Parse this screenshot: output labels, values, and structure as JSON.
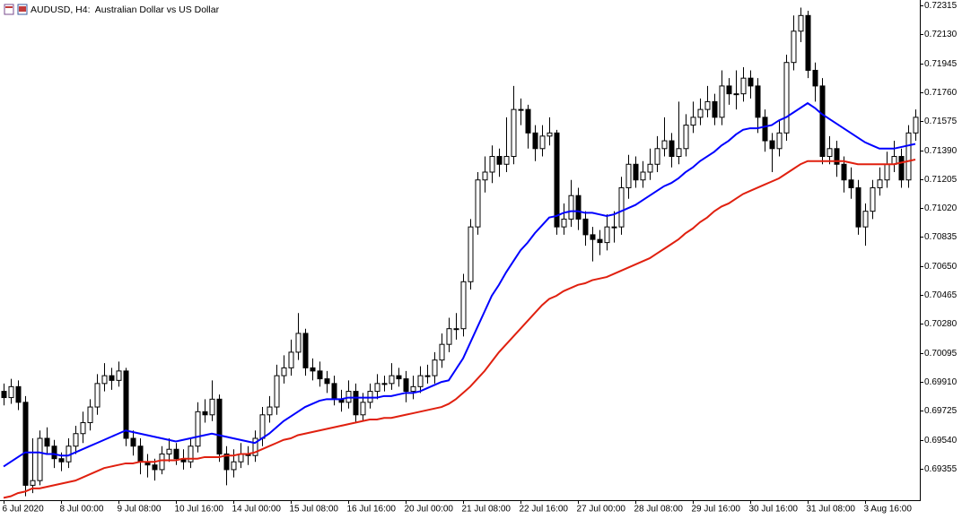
{
  "chart_data": {
    "type": "candlestick",
    "title": "AUDUSD, H4:  Australian Dollar vs US Dollar",
    "categories": [
      "6 Jul 2020",
      null,
      null,
      null,
      null,
      null,
      null,
      null,
      "8 Jul 00:00",
      null,
      null,
      null,
      null,
      null,
      null,
      null,
      "9 Jul 08:00",
      null,
      null,
      null,
      null,
      null,
      null,
      null,
      "10 Jul 16:00",
      null,
      null,
      null,
      null,
      null,
      null,
      null,
      "14 Jul 00:00",
      null,
      null,
      null,
      null,
      null,
      null,
      null,
      "15 Jul 08:00",
      null,
      null,
      null,
      null,
      null,
      null,
      null,
      "16 Jul 16:00",
      null,
      null,
      null,
      null,
      null,
      null,
      null,
      "20 Jul 00:00",
      null,
      null,
      null,
      null,
      null,
      null,
      null,
      "21 Jul 08:00",
      null,
      null,
      null,
      null,
      null,
      null,
      null,
      "22 Jul 16:00",
      null,
      null,
      null,
      null,
      null,
      null,
      null,
      "27 Jul 00:00",
      null,
      null,
      null,
      null,
      null,
      null,
      null,
      "28 Jul 08:00",
      null,
      null,
      null,
      null,
      null,
      null,
      null,
      "29 Jul 16:00",
      null,
      null,
      null,
      null,
      null,
      null,
      null,
      "30 Jul 16:00",
      null,
      null,
      null,
      null,
      null,
      null,
      null,
      "31 Jul 08:00",
      null,
      null,
      null,
      null,
      null,
      null,
      null,
      "3 Aug 16:00",
      null,
      null,
      null,
      null,
      null,
      null,
      null
    ],
    "open": [
      0.6985,
      0.6981,
      0.6988,
      0.6978,
      0.6925,
      0.6928,
      0.6955,
      0.695,
      0.6942,
      0.694,
      0.695,
      0.6958,
      0.6965,
      0.6975,
      0.699,
      0.6995,
      0.6992,
      0.6998,
      0.6955,
      0.695,
      0.694,
      0.6938,
      0.6935,
      0.6945,
      0.6948,
      0.6942,
      0.694,
      0.695,
      0.6972,
      0.697,
      0.698,
      0.6945,
      0.6935,
      0.694,
      0.6945,
      0.6944,
      0.6955,
      0.697,
      0.6975,
      0.6995,
      0.7,
      0.701,
      0.7022,
      0.7,
      0.6998,
      0.6993,
      0.699,
      0.698,
      0.6978,
      0.6985,
      0.697,
      0.6978,
      0.6985,
      0.699,
      0.699,
      0.6995,
      0.6993,
      0.6985,
      0.6988,
      0.6995,
      0.6995,
      0.7005,
      0.7015,
      0.7025,
      0.7025,
      0.7055,
      0.709,
      0.712,
      0.7125,
      0.7135,
      0.713,
      0.7135,
      0.7165,
      0.7165,
      0.715,
      0.714,
      0.7148,
      0.715,
      0.709,
      0.7095,
      0.711,
      0.7095,
      0.7085,
      0.7082,
      0.708,
      0.709,
      0.709,
      0.7115,
      0.713,
      0.712,
      0.7125,
      0.713,
      0.714,
      0.7145,
      0.7135,
      0.714,
      0.7155,
      0.716,
      0.7165,
      0.717,
      0.716,
      0.718,
      0.7175,
      0.7175,
      0.7185,
      0.718,
      0.716,
      0.7145,
      0.714,
      0.715,
      0.7195,
      0.7215,
      0.7225,
      0.719,
      0.718,
      0.7135,
      0.714,
      0.713,
      0.712,
      0.7115,
      0.709,
      0.71,
      0.7115,
      0.712,
      0.713,
      0.7135,
      0.712,
      0.715
    ],
    "high": [
      0.699,
      0.6993,
      0.6992,
      0.6982,
      0.6955,
      0.696,
      0.6962,
      0.6954,
      0.6946,
      0.6955,
      0.6963,
      0.6972,
      0.698,
      0.6996,
      0.7003,
      0.7,
      0.7004,
      0.7,
      0.696,
      0.6955,
      0.6945,
      0.6942,
      0.695,
      0.6955,
      0.6952,
      0.6948,
      0.6955,
      0.6978,
      0.698,
      0.6992,
      0.6983,
      0.695,
      0.6948,
      0.6952,
      0.695,
      0.696,
      0.6975,
      0.6982,
      0.7002,
      0.7008,
      0.7018,
      0.7035,
      0.7025,
      0.7006,
      0.7004,
      0.6998,
      0.6995,
      0.6986,
      0.6992,
      0.699,
      0.6984,
      0.699,
      0.6996,
      0.6995,
      0.7003,
      0.7,
      0.6998,
      0.6995,
      0.7001,
      0.7002,
      0.701,
      0.7022,
      0.7032,
      0.7035,
      0.706,
      0.7095,
      0.7125,
      0.7135,
      0.7142,
      0.714,
      0.716,
      0.718,
      0.7172,
      0.7168,
      0.7155,
      0.7155,
      0.716,
      0.7152,
      0.7105,
      0.712,
      0.7115,
      0.71,
      0.709,
      0.7088,
      0.7098,
      0.71,
      0.7122,
      0.7136,
      0.7135,
      0.7132,
      0.714,
      0.7148,
      0.716,
      0.715,
      0.717,
      0.7162,
      0.717,
      0.7172,
      0.718,
      0.7175,
      0.719,
      0.7185,
      0.719,
      0.7192,
      0.719,
      0.7185,
      0.7165,
      0.715,
      0.7158,
      0.72,
      0.7225,
      0.723,
      0.7228,
      0.7195,
      0.7185,
      0.7148,
      0.7145,
      0.7135,
      0.7128,
      0.712,
      0.7105,
      0.712,
      0.7128,
      0.7138,
      0.7145,
      0.714,
      0.7155,
      0.7165
    ],
    "low": [
      0.6976,
      0.6977,
      0.6973,
      0.6918,
      0.692,
      0.6925,
      0.6945,
      0.6936,
      0.6934,
      0.6936,
      0.6945,
      0.6952,
      0.696,
      0.697,
      0.6985,
      0.6986,
      0.6988,
      0.695,
      0.6944,
      0.6932,
      0.693,
      0.6928,
      0.6932,
      0.694,
      0.6938,
      0.6935,
      0.6936,
      0.6946,
      0.6965,
      0.6966,
      0.694,
      0.6925,
      0.693,
      0.6936,
      0.6938,
      0.694,
      0.695,
      0.6965,
      0.697,
      0.699,
      0.6995,
      0.7005,
      0.6995,
      0.6992,
      0.6988,
      0.6984,
      0.6976,
      0.6972,
      0.6974,
      0.6965,
      0.6966,
      0.6974,
      0.698,
      0.6985,
      0.6986,
      0.6988,
      0.6978,
      0.698,
      0.6984,
      0.699,
      0.699,
      0.7,
      0.701,
      0.7018,
      0.702,
      0.705,
      0.7085,
      0.7112,
      0.7118,
      0.7122,
      0.7125,
      0.713,
      0.7155,
      0.714,
      0.7132,
      0.7135,
      0.7142,
      0.7085,
      0.7085,
      0.709,
      0.7088,
      0.7078,
      0.7068,
      0.7072,
      0.7075,
      0.708,
      0.7085,
      0.7108,
      0.7115,
      0.7115,
      0.712,
      0.7125,
      0.7135,
      0.7128,
      0.713,
      0.7135,
      0.715,
      0.7155,
      0.716,
      0.7155,
      0.7155,
      0.7168,
      0.7165,
      0.717,
      0.7172,
      0.715,
      0.7138,
      0.7125,
      0.7135,
      0.7145,
      0.719,
      0.7208,
      0.7185,
      0.717,
      0.713,
      0.713,
      0.7122,
      0.7112,
      0.7108,
      0.7085,
      0.7078,
      0.7095,
      0.711,
      0.7115,
      0.7125,
      0.7115,
      0.7115,
      0.7145
    ],
    "close": [
      0.6981,
      0.6988,
      0.6978,
      0.6925,
      0.6928,
      0.6955,
      0.695,
      0.6942,
      0.694,
      0.695,
      0.6958,
      0.6965,
      0.6975,
      0.699,
      0.6995,
      0.6992,
      0.6998,
      0.6955,
      0.695,
      0.694,
      0.6938,
      0.6935,
      0.6945,
      0.6948,
      0.6942,
      0.694,
      0.695,
      0.6972,
      0.697,
      0.698,
      0.6945,
      0.6935,
      0.694,
      0.6945,
      0.6944,
      0.6955,
      0.697,
      0.6975,
      0.6995,
      0.7,
      0.701,
      0.7022,
      0.7,
      0.6998,
      0.6993,
      0.699,
      0.698,
      0.6978,
      0.6985,
      0.697,
      0.6978,
      0.6985,
      0.699,
      0.699,
      0.6995,
      0.6993,
      0.6985,
      0.6988,
      0.6995,
      0.6995,
      0.7005,
      0.7015,
      0.7025,
      0.7025,
      0.7055,
      0.709,
      0.712,
      0.7125,
      0.7135,
      0.713,
      0.7135,
      0.7165,
      0.7165,
      0.715,
      0.714,
      0.7148,
      0.715,
      0.709,
      0.7095,
      0.711,
      0.7095,
      0.7085,
      0.7082,
      0.708,
      0.709,
      0.709,
      0.7115,
      0.713,
      0.712,
      0.7125,
      0.713,
      0.714,
      0.7145,
      0.7135,
      0.714,
      0.7155,
      0.716,
      0.7165,
      0.717,
      0.716,
      0.718,
      0.7175,
      0.7175,
      0.7185,
      0.718,
      0.716,
      0.7145,
      0.714,
      0.715,
      0.7195,
      0.7215,
      0.7225,
      0.719,
      0.718,
      0.7135,
      0.714,
      0.713,
      0.712,
      0.7115,
      0.709,
      0.71,
      0.7115,
      0.712,
      0.713,
      0.7135,
      0.712,
      0.715,
      0.716
    ],
    "ma_lines": [
      {
        "color": "#0000ff",
        "values": [
          0.6937,
          0.694,
          0.6943,
          0.6946,
          0.6946,
          0.6946,
          0.6945,
          0.6945,
          0.6944,
          0.6944,
          0.6946,
          0.6948,
          0.695,
          0.6952,
          0.6954,
          0.6956,
          0.6958,
          0.696,
          0.6959,
          0.6958,
          0.6957,
          0.6956,
          0.6955,
          0.6954,
          0.6953,
          0.6954,
          0.6955,
          0.6956,
          0.6957,
          0.6958,
          0.6957,
          0.6956,
          0.6955,
          0.6954,
          0.6953,
          0.6952,
          0.6955,
          0.6958,
          0.6962,
          0.6966,
          0.6969,
          0.6972,
          0.6975,
          0.6977,
          0.6979,
          0.698,
          0.698,
          0.698,
          0.6981,
          0.6981,
          0.6981,
          0.6981,
          0.6981,
          0.6982,
          0.6982,
          0.6983,
          0.6984,
          0.6984,
          0.6985,
          0.6987,
          0.6989,
          0.6991,
          0.6992,
          0.6999,
          0.7006,
          0.7016,
          0.7026,
          0.7036,
          0.7046,
          0.7053,
          0.7061,
          0.7068,
          0.7075,
          0.708,
          0.7086,
          0.7091,
          0.7096,
          0.7097,
          0.7099,
          0.71,
          0.71,
          0.7099,
          0.7099,
          0.7098,
          0.7097,
          0.7098,
          0.71,
          0.7102,
          0.7104,
          0.7107,
          0.711,
          0.7113,
          0.7116,
          0.7118,
          0.7121,
          0.7125,
          0.7128,
          0.7132,
          0.7135,
          0.7138,
          0.7142,
          0.7145,
          0.7149,
          0.7152,
          0.7153,
          0.7153,
          0.7154,
          0.7155,
          0.7158,
          0.716,
          0.7163,
          0.7166,
          0.7169,
          0.7166,
          0.7162,
          0.7159,
          0.7156,
          0.7153,
          0.715,
          0.7147,
          0.7144,
          0.7142,
          0.714,
          0.714,
          0.714,
          0.7141,
          0.7142,
          0.7143
        ]
      },
      {
        "color": "#e0200f",
        "values": [
          0.6917,
          0.6918,
          0.692,
          0.6921,
          0.6923,
          0.6923,
          0.6924,
          0.6925,
          0.6926,
          0.6927,
          0.6928,
          0.693,
          0.6932,
          0.6934,
          0.6936,
          0.6937,
          0.6938,
          0.6939,
          0.6939,
          0.694,
          0.694,
          0.694,
          0.6941,
          0.6941,
          0.6941,
          0.6942,
          0.6942,
          0.6942,
          0.6943,
          0.6943,
          0.6943,
          0.6944,
          0.6944,
          0.6945,
          0.6945,
          0.6946,
          0.6948,
          0.695,
          0.6952,
          0.6954,
          0.6955,
          0.6957,
          0.6958,
          0.6959,
          0.696,
          0.6961,
          0.6962,
          0.6963,
          0.6964,
          0.6965,
          0.6966,
          0.6967,
          0.6967,
          0.6968,
          0.6968,
          0.6969,
          0.697,
          0.6971,
          0.6972,
          0.6973,
          0.6974,
          0.6975,
          0.6977,
          0.698,
          0.6984,
          0.6988,
          0.6993,
          0.6998,
          0.7004,
          0.701,
          0.7015,
          0.702,
          0.7025,
          0.703,
          0.7035,
          0.704,
          0.7044,
          0.7046,
          0.7049,
          0.7051,
          0.7053,
          0.7054,
          0.7056,
          0.7057,
          0.7058,
          0.706,
          0.7062,
          0.7064,
          0.7066,
          0.7068,
          0.707,
          0.7073,
          0.7076,
          0.7079,
          0.7082,
          0.7086,
          0.7089,
          0.7093,
          0.7096,
          0.71,
          0.7103,
          0.7105,
          0.7108,
          0.7111,
          0.7113,
          0.7115,
          0.7117,
          0.7119,
          0.7121,
          0.7124,
          0.7127,
          0.713,
          0.7132,
          0.7132,
          0.7132,
          0.7132,
          0.7132,
          0.7132,
          0.7131,
          0.713,
          0.713,
          0.713,
          0.713,
          0.713,
          0.713,
          0.7131,
          0.7132,
          0.7133
        ]
      }
    ],
    "up_color": "#ffffff",
    "down_color": "#000000",
    "outline_color": "#000000",
    "ylim": [
      0.69155,
      0.72349
    ],
    "yticks": [
      0.72315,
      {
        "value": 0.7213,
        "label": "0.72130"
      },
      0.71945,
      {
        "value": 0.7176,
        "label": "0.71760"
      },
      0.71575,
      {
        "value": 0.7139,
        "label": "0.71390"
      },
      0.71205,
      {
        "value": 0.7102,
        "label": "0.71020"
      },
      0.70835,
      {
        "value": 0.7065,
        "label": "0.70650"
      },
      0.70465,
      {
        "value": 0.7028,
        "label": "0.70280"
      },
      0.70095,
      {
        "value": 0.6991,
        "label": "0.69910"
      },
      0.69725,
      {
        "value": 0.6954,
        "label": "0.69540"
      },
      0.69355
    ],
    "grid": false
  }
}
